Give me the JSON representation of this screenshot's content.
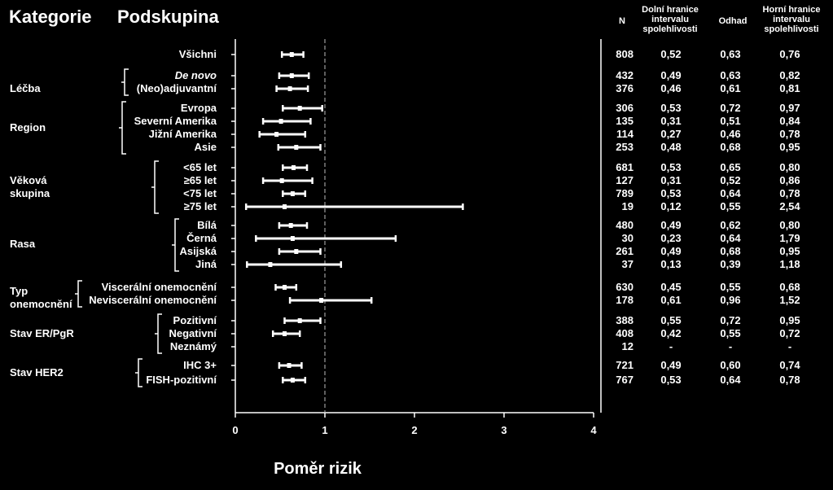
{
  "header": {
    "category": "Kategorie",
    "subgroup": "Podskupina",
    "n": "N",
    "lower_ci": [
      "Dolní hranice",
      "intervalu",
      "spolehlivosti"
    ],
    "estimate": "Odhad",
    "upper_ci": [
      "Horní hranice",
      "intervalu",
      "spolehlivosti"
    ]
  },
  "chart_data": {
    "type": "forest",
    "xlabel": "Poměr rizik",
    "xlim": [
      0,
      4
    ],
    "xticks": [
      "0",
      "1",
      "2",
      "3",
      "4"
    ],
    "reference_line": 1,
    "categories": [
      {
        "label": "Léčba",
        "rows": [
          1,
          2
        ]
      },
      {
        "label": "Region",
        "rows": [
          3,
          4,
          5,
          6
        ]
      },
      {
        "label": "Věková skupina",
        "rows": [
          7,
          8,
          9,
          10
        ]
      },
      {
        "label": "Rasa",
        "rows": [
          11,
          12,
          13,
          14
        ]
      },
      {
        "label": "Typ onemocnění",
        "rows": [
          15,
          16
        ]
      },
      {
        "label": "Stav ER/PgR",
        "rows": [
          17,
          18,
          19
        ]
      },
      {
        "label": "Stav HER2",
        "rows": [
          20,
          21
        ]
      }
    ],
    "rows": [
      {
        "label": "Všichni",
        "n": "808",
        "lo": "0,52",
        "est": "0,63",
        "hi": "0,76",
        "lo_v": 0.52,
        "est_v": 0.63,
        "hi_v": 0.76
      },
      {
        "label": "De novo",
        "italic": true,
        "n": "432",
        "lo": "0,49",
        "est": "0,63",
        "hi": "0,82",
        "lo_v": 0.49,
        "est_v": 0.63,
        "hi_v": 0.82
      },
      {
        "label": "(Neo)adjuvantní",
        "n": "376",
        "lo": "0,46",
        "est": "0,61",
        "hi": "0,81",
        "lo_v": 0.46,
        "est_v": 0.61,
        "hi_v": 0.81
      },
      {
        "label": "Evropa",
        "n": "306",
        "lo": "0,53",
        "est": "0,72",
        "hi": "0,97",
        "lo_v": 0.53,
        "est_v": 0.72,
        "hi_v": 0.97
      },
      {
        "label": "Severní Amerika",
        "n": "135",
        "lo": "0,31",
        "est": "0,51",
        "hi": "0,84",
        "lo_v": 0.31,
        "est_v": 0.51,
        "hi_v": 0.84
      },
      {
        "label": "Jižní Amerika",
        "n": "114",
        "lo": "0,27",
        "est": "0,46",
        "hi": "0,78",
        "lo_v": 0.27,
        "est_v": 0.46,
        "hi_v": 0.78
      },
      {
        "label": "Asie",
        "n": "253",
        "lo": "0,48",
        "est": "0,68",
        "hi": "0,95",
        "lo_v": 0.48,
        "est_v": 0.68,
        "hi_v": 0.95
      },
      {
        "label": "<65 let",
        "n": "681",
        "lo": "0,53",
        "est": "0,65",
        "hi": "0,80",
        "lo_v": 0.53,
        "est_v": 0.65,
        "hi_v": 0.8
      },
      {
        "label": "≥65 let",
        "n": "127",
        "lo": "0,31",
        "est": "0,52",
        "hi": "0,86",
        "lo_v": 0.31,
        "est_v": 0.52,
        "hi_v": 0.86
      },
      {
        "label": "<75 let",
        "n": "789",
        "lo": "0,53",
        "est": "0,64",
        "hi": "0,78",
        "lo_v": 0.53,
        "est_v": 0.64,
        "hi_v": 0.78
      },
      {
        "label": "≥75 let",
        "n": "19",
        "lo": "0,12",
        "est": "0,55",
        "hi": "2,54",
        "lo_v": 0.12,
        "est_v": 0.55,
        "hi_v": 2.54
      },
      {
        "label": "Bílá",
        "n": "480",
        "lo": "0,49",
        "est": "0,62",
        "hi": "0,80",
        "lo_v": 0.49,
        "est_v": 0.62,
        "hi_v": 0.8
      },
      {
        "label": "Černá",
        "n": "30",
        "lo": "0,23",
        "est": "0,64",
        "hi": "1,79",
        "lo_v": 0.23,
        "est_v": 0.64,
        "hi_v": 1.79
      },
      {
        "label": "Asijská",
        "n": "261",
        "lo": "0,49",
        "est": "0,68",
        "hi": "0,95",
        "lo_v": 0.49,
        "est_v": 0.68,
        "hi_v": 0.95
      },
      {
        "label": "Jiná",
        "n": "37",
        "lo": "0,13",
        "est": "0,39",
        "hi": "1,18",
        "lo_v": 0.13,
        "est_v": 0.39,
        "hi_v": 1.18
      },
      {
        "label": "Viscerální onemocnění",
        "n": "630",
        "lo": "0,45",
        "est": "0,55",
        "hi": "0,68",
        "lo_v": 0.45,
        "est_v": 0.55,
        "hi_v": 0.68
      },
      {
        "label": "Neviscerální onemocnění",
        "n": "178",
        "lo": "0,61",
        "est": "0,96",
        "hi": "1,52",
        "lo_v": 0.61,
        "est_v": 0.96,
        "hi_v": 1.52
      },
      {
        "label": "Pozitivní",
        "n": "388",
        "lo": "0,55",
        "est": "0,72",
        "hi": "0,95",
        "lo_v": 0.55,
        "est_v": 0.72,
        "hi_v": 0.95
      },
      {
        "label": "Negativní",
        "n": "408",
        "lo": "0,42",
        "est": "0,55",
        "hi": "0,72",
        "lo_v": 0.42,
        "est_v": 0.55,
        "hi_v": 0.72
      },
      {
        "label": "Neznámý",
        "n": "12",
        "lo": "-",
        "est": "-",
        "hi": "-"
      },
      {
        "label": "IHC 3+",
        "n": "721",
        "lo": "0,49",
        "est": "0,60",
        "hi": "0,74",
        "lo_v": 0.49,
        "est_v": 0.6,
        "hi_v": 0.74
      },
      {
        "label": "FISH-pozitivní",
        "n": "767",
        "lo": "0,53",
        "est": "0,64",
        "hi": "0,78",
        "lo_v": 0.53,
        "est_v": 0.64,
        "hi_v": 0.78
      }
    ]
  }
}
